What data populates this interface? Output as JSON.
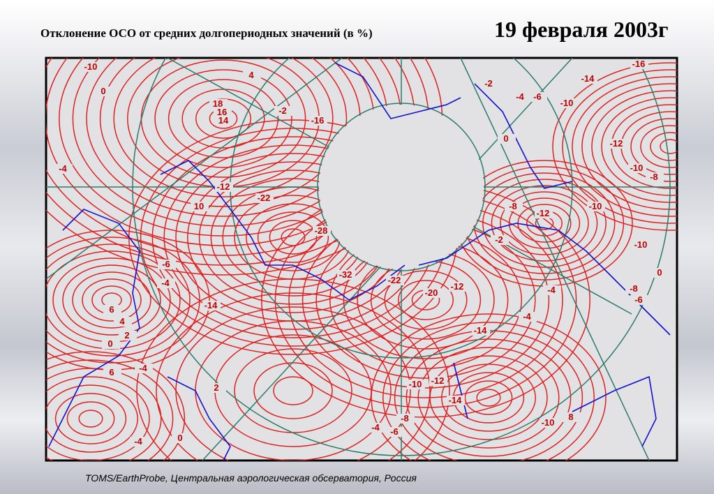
{
  "header": {
    "title": "Отклонение ОСО от средних долгопериодных значений (в %)",
    "date": "19 февраля 2003г"
  },
  "map": {
    "contour_labels": [
      "-10",
      "4",
      "0",
      "18",
      "16",
      "14",
      "-2",
      "-16",
      "-4",
      "-12",
      "10",
      "-22",
      "-28",
      "-32",
      "-22",
      "-20",
      "-12",
      "-14",
      "-4",
      "-4",
      "-10",
      "-12",
      "-14",
      "-8",
      "-4",
      "-6",
      "6",
      "-4",
      "-4",
      "0",
      "2",
      "-2",
      "-4",
      "-6",
      "-10",
      "0",
      "-14",
      "-16",
      "-12",
      "-10",
      "-8",
      "-12",
      "-10",
      "-8",
      "-2",
      "-10",
      "-8",
      "-6",
      "0",
      "6",
      "4",
      "2",
      "0",
      "-6",
      "-4",
      "-14",
      "-10",
      "8"
    ]
  },
  "caption": "TOMS/EarthProbe, Центральная аэрологическая обсерватория, Россия"
}
